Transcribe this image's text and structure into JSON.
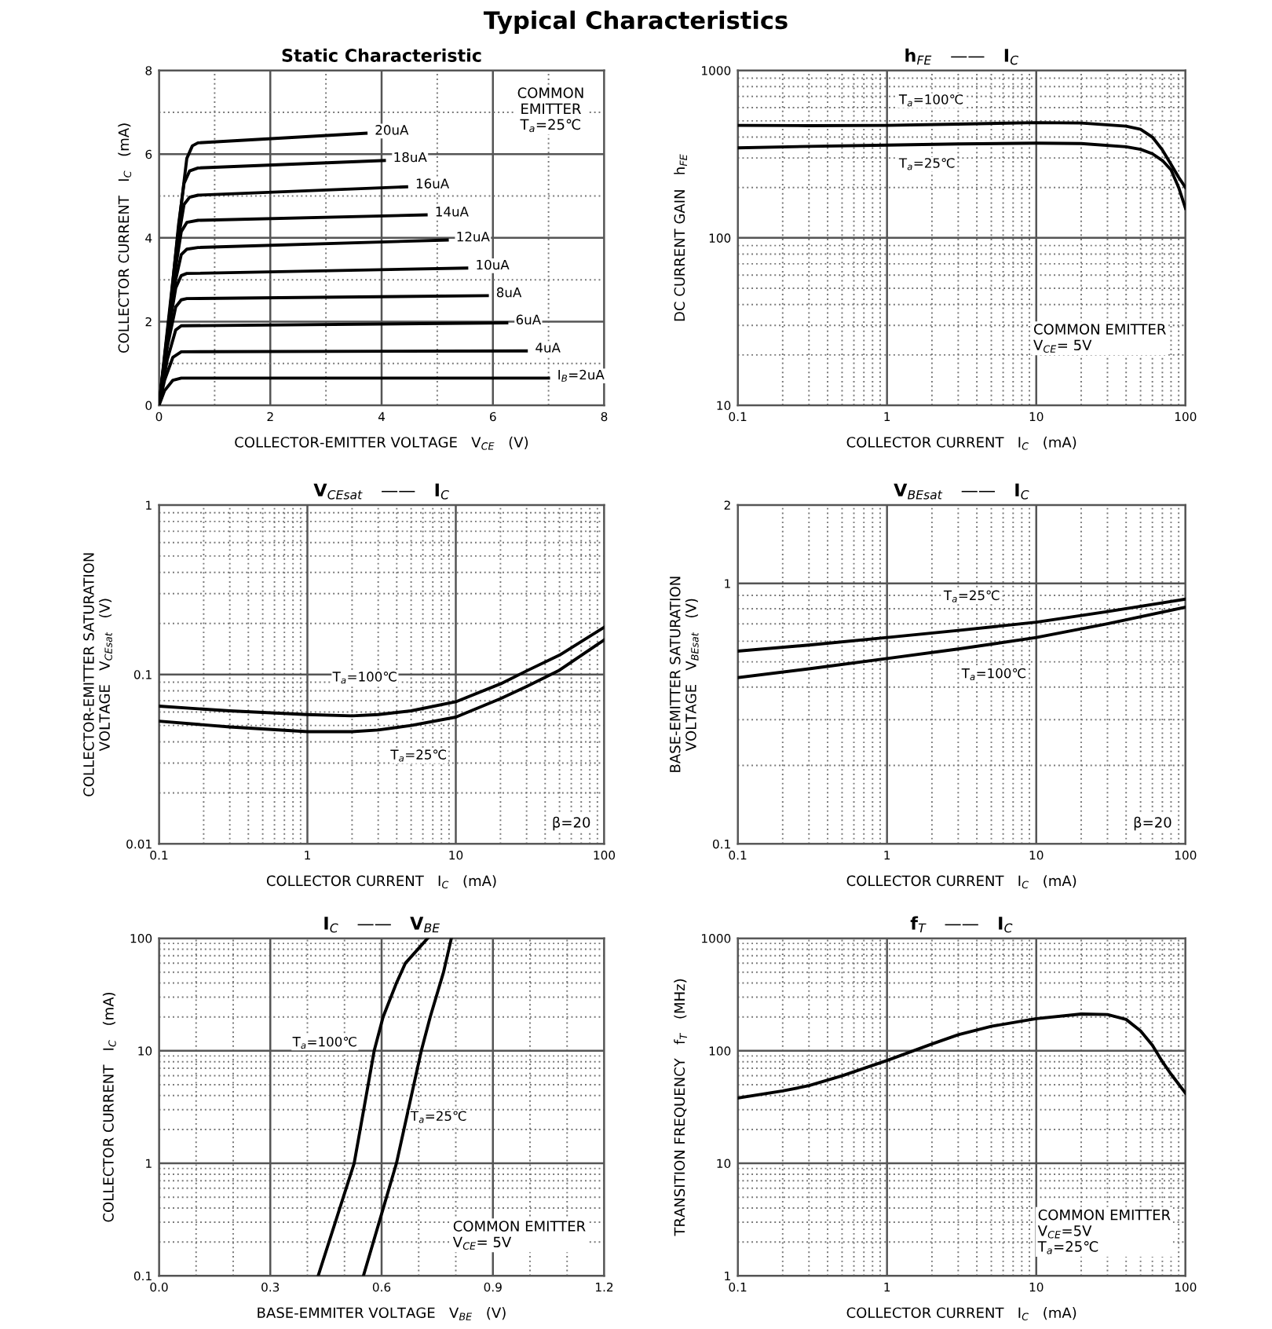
{
  "chart_data": [
    {
      "type": "other",
      "title": "Typical Characteristics"
    },
    {
      "type": "line",
      "title": "Static Characteristic",
      "xlabel": "COLLECTOR-EMITTER VOLTAGE   V$_{CE}$   (V)",
      "ylabel": "COLLECTOR CURRENT   I$_{C}$   (mA)",
      "xlim": [
        0,
        8
      ],
      "ylim": [
        0,
        8
      ],
      "xticks": [
        0,
        {
          "value": 1,
          "label": null
        },
        2,
        {
          "value": 3,
          "label": null
        },
        4,
        {
          "value": 5,
          "label": null
        },
        6,
        {
          "value": 7,
          "label": null
        },
        8
      ],
      "yticks": [
        0,
        {
          "value": 1,
          "label": null
        },
        2,
        {
          "value": 3,
          "label": null
        },
        4,
        {
          "value": 5,
          "label": null
        },
        6,
        {
          "value": 7,
          "label": null
        },
        8
      ],
      "grid": true,
      "marker": "none",
      "line_style": "solid",
      "annotations": [
        "COMMON\nEMITTER\nT$_{a}$=25℃"
      ],
      "series": [
        {
          "name": "20uA",
          "color": "#000000",
          "x": [
            0,
            0.2,
            0.4,
            0.5,
            0.6,
            0.7,
            3.72
          ],
          "values": [
            0,
            2.4,
            4.8,
            5.9,
            6.2,
            6.27,
            6.5
          ]
        },
        {
          "name": "18uA",
          "color": "#000000",
          "x": [
            0,
            0.2,
            0.35,
            0.45,
            0.55,
            0.7,
            4.05
          ],
          "values": [
            0,
            2.3,
            4.3,
            5.3,
            5.6,
            5.67,
            5.85
          ]
        },
        {
          "name": "16uA",
          "color": "#000000",
          "x": [
            0,
            0.2,
            0.35,
            0.45,
            0.55,
            0.7,
            4.45
          ],
          "values": [
            0,
            2.2,
            4.0,
            4.8,
            4.97,
            5.02,
            5.22
          ]
        },
        {
          "name": "14uA",
          "color": "#000000",
          "x": [
            0,
            0.2,
            0.3,
            0.4,
            0.5,
            0.7,
            4.8
          ],
          "values": [
            0,
            2.1,
            3.3,
            4.15,
            4.37,
            4.42,
            4.55
          ]
        },
        {
          "name": "12uA",
          "color": "#000000",
          "x": [
            0,
            0.2,
            0.3,
            0.4,
            0.5,
            0.7,
            5.18
          ],
          "values": [
            0,
            2.0,
            3.0,
            3.6,
            3.73,
            3.77,
            3.95
          ]
        },
        {
          "name": "10uA",
          "color": "#000000",
          "x": [
            0,
            0.15,
            0.3,
            0.4,
            0.5,
            5.53
          ],
          "values": [
            0,
            1.6,
            2.8,
            3.1,
            3.15,
            3.28
          ]
        },
        {
          "name": "8uA",
          "color": "#000000",
          "x": [
            0,
            0.15,
            0.3,
            0.4,
            0.5,
            5.9
          ],
          "values": [
            0,
            1.4,
            2.35,
            2.52,
            2.55,
            2.62
          ]
        },
        {
          "name": "6uA",
          "color": "#000000",
          "x": [
            0,
            0.15,
            0.3,
            0.4,
            6.25
          ],
          "values": [
            0,
            1.1,
            1.8,
            1.9,
            1.97
          ]
        },
        {
          "name": "4uA",
          "color": "#000000",
          "x": [
            0,
            0.1,
            0.25,
            0.4,
            6.6
          ],
          "values": [
            0,
            0.6,
            1.15,
            1.28,
            1.3
          ]
        },
        {
          "name": "I$_{B}$=2uA",
          "color": "#000000",
          "x": [
            0,
            0.1,
            0.25,
            0.4,
            7.0
          ],
          "values": [
            0,
            0.35,
            0.6,
            0.65,
            0.65
          ]
        }
      ]
    },
    {
      "type": "line",
      "title": "h$_{FE}$   ——   I$_{C}$",
      "xlabel": "COLLECTOR CURRENT   I$_{C}$   (mA)",
      "ylabel": "DC CURRENT GAIN   h$_{FE}$",
      "log": "xy",
      "xlim": [
        0.1,
        100
      ],
      "ylim": [
        10,
        1000
      ],
      "xticks": [
        0.1,
        1,
        10,
        100
      ],
      "yticks": [
        10,
        100,
        1000
      ],
      "grid": true,
      "marker": "none",
      "line_style": "solid",
      "annotations": [
        "COMMON EMITTER\nV$_{CE}$= 5V"
      ],
      "series": [
        {
          "name": "T$_{a}$=100℃",
          "color": "#000000",
          "x": [
            0.1,
            0.3,
            1,
            3,
            10,
            20,
            40,
            50,
            60,
            70,
            80,
            90,
            100
          ],
          "values": [
            470,
            468,
            470,
            478,
            488,
            485,
            465,
            445,
            400,
            335,
            275,
            230,
            200
          ]
        },
        {
          "name": "T$_{a}$=25℃",
          "color": "#000000",
          "x": [
            0.1,
            0.3,
            1,
            3,
            10,
            20,
            40,
            50,
            60,
            70,
            80,
            90,
            100
          ],
          "values": [
            345,
            352,
            358,
            364,
            368,
            366,
            350,
            338,
            318,
            290,
            255,
            200,
            150
          ]
        }
      ]
    },
    {
      "type": "line",
      "title": "V$_{CEsat}$   ——   I$_{C}$",
      "xlabel": "COLLECTOR CURRENT   I$_{C}$   (mA)",
      "ylabel": "COLLECTOR-EMITTER SATURATION\nVOLTAGE   V$_{CEsat}$   (V)",
      "log": "xy",
      "xlim": [
        0.1,
        100
      ],
      "ylim": [
        0.01,
        1
      ],
      "xticks": [
        0.1,
        1,
        10,
        100
      ],
      "yticks": [
        0.01,
        0.1,
        1
      ],
      "grid": true,
      "marker": "none",
      "line_style": "solid",
      "annotations": [
        "β=20"
      ],
      "series": [
        {
          "name": "T$_{a}$=100℃",
          "color": "#000000",
          "x": [
            0.1,
            0.3,
            1,
            2,
            3,
            5,
            10,
            20,
            30,
            50,
            100
          ],
          "values": [
            0.065,
            0.061,
            0.058,
            0.057,
            0.058,
            0.061,
            0.069,
            0.088,
            0.105,
            0.13,
            0.19
          ]
        },
        {
          "name": "T$_{a}$=25℃",
          "color": "#000000",
          "x": [
            0.1,
            0.3,
            1,
            2,
            3,
            5,
            10,
            20,
            30,
            50,
            100
          ],
          "values": [
            0.053,
            0.049,
            0.046,
            0.046,
            0.047,
            0.05,
            0.056,
            0.072,
            0.085,
            0.106,
            0.16
          ]
        }
      ]
    },
    {
      "type": "line",
      "title": "V$_{BEsat}$   ——   I$_{C}$",
      "xlabel": "COLLECTOR CURRENT   I$_{C}$   (mA)",
      "ylabel": "BASE-EMITTER SATURATION\nVOLTAGE   V$_{BEsat}$   (V)",
      "log": "xy",
      "xlim": [
        0.1,
        100
      ],
      "ylim": [
        0.1,
        2
      ],
      "xticks": [
        0.1,
        1,
        10,
        100
      ],
      "yticks": [
        0.1,
        1,
        2
      ],
      "grid": true,
      "marker": "none",
      "line_style": "solid",
      "annotations": [
        "β=20"
      ],
      "series": [
        {
          "name": "T$_{a}$=25℃",
          "color": "#000000",
          "x": [
            0.1,
            0.3,
            1,
            3,
            10,
            30,
            100
          ],
          "values": [
            0.55,
            0.58,
            0.62,
            0.66,
            0.71,
            0.78,
            0.87
          ]
        },
        {
          "name": "T$_{a}$=100℃",
          "color": "#000000",
          "x": [
            0.1,
            0.3,
            1,
            3,
            10,
            30,
            100
          ],
          "values": [
            0.435,
            0.47,
            0.515,
            0.56,
            0.62,
            0.7,
            0.81
          ]
        }
      ]
    },
    {
      "type": "line",
      "title": "I$_{C}$   ——   V$_{BE}$",
      "xlabel": "BASE-EMMITER VOLTAGE   V$_{BE}$   (V)",
      "ylabel": "COLLECTOR CURRENT   I$_{C}$   (mA)",
      "log": "y",
      "xlim": [
        0.0,
        1.2
      ],
      "ylim": [
        0.1,
        100
      ],
      "xticks": [
        {
          "value": 0.0,
          "label": "0.0"
        },
        {
          "value": 0.1,
          "label": null
        },
        {
          "value": 0.2,
          "label": null
        },
        0.3,
        {
          "value": 0.4,
          "label": null
        },
        {
          "value": 0.5,
          "label": null
        },
        0.6,
        {
          "value": 0.7,
          "label": null
        },
        {
          "value": 0.8,
          "label": null
        },
        0.9,
        {
          "value": 1.0,
          "label": null
        },
        {
          "value": 1.1,
          "label": null
        },
        1.2
      ],
      "yticks": [
        0.1,
        1,
        10,
        100
      ],
      "grid": true,
      "marker": "none",
      "line_style": "solid",
      "annotations": [
        "COMMON EMITTER\nV$_{CE}$= 5V"
      ],
      "series": [
        {
          "name": "T$_{a}$=100℃",
          "color": "#000000",
          "x": [
            0.429,
            0.526,
            0.58,
            0.604,
            0.64,
            0.664,
            0.724
          ],
          "values": [
            0.1,
            1,
            10,
            20,
            40,
            60,
            100
          ]
        },
        {
          "name": "T$_{a}$=25℃",
          "color": "#000000",
          "x": [
            0.551,
            0.64,
            0.707,
            0.731,
            0.767,
            0.788
          ],
          "values": [
            0.1,
            1,
            10,
            20,
            50,
            100
          ]
        }
      ]
    },
    {
      "type": "line",
      "title": "f$_{T}$   ——   I$_{C}$",
      "xlabel": "COLLECTOR CURRENT   I$_{C}$   (mA)",
      "ylabel": "TRANSITION FREQUENCY   f$_{T}$   (MHz)",
      "log": "xy",
      "xlim": [
        0.1,
        100
      ],
      "ylim": [
        1,
        1000
      ],
      "xticks": [
        0.1,
        1,
        10,
        100
      ],
      "yticks": [
        1,
        10,
        100,
        1000
      ],
      "grid": true,
      "marker": "none",
      "line_style": "solid",
      "annotations": [
        "COMMON EMITTER\nV$_{CE}$=5V\nT$_{a}$=25℃"
      ],
      "series": [
        {
          "color": "#000000",
          "x": [
            0.1,
            0.2,
            0.3,
            0.5,
            1,
            2,
            3,
            5,
            10,
            20,
            30,
            40,
            50,
            60,
            70,
            80,
            100
          ],
          "values": [
            38,
            44,
            49,
            60,
            82,
            115,
            139,
            165,
            193,
            212,
            210,
            190,
            150,
            112,
            80,
            62,
            42
          ]
        }
      ]
    }
  ]
}
